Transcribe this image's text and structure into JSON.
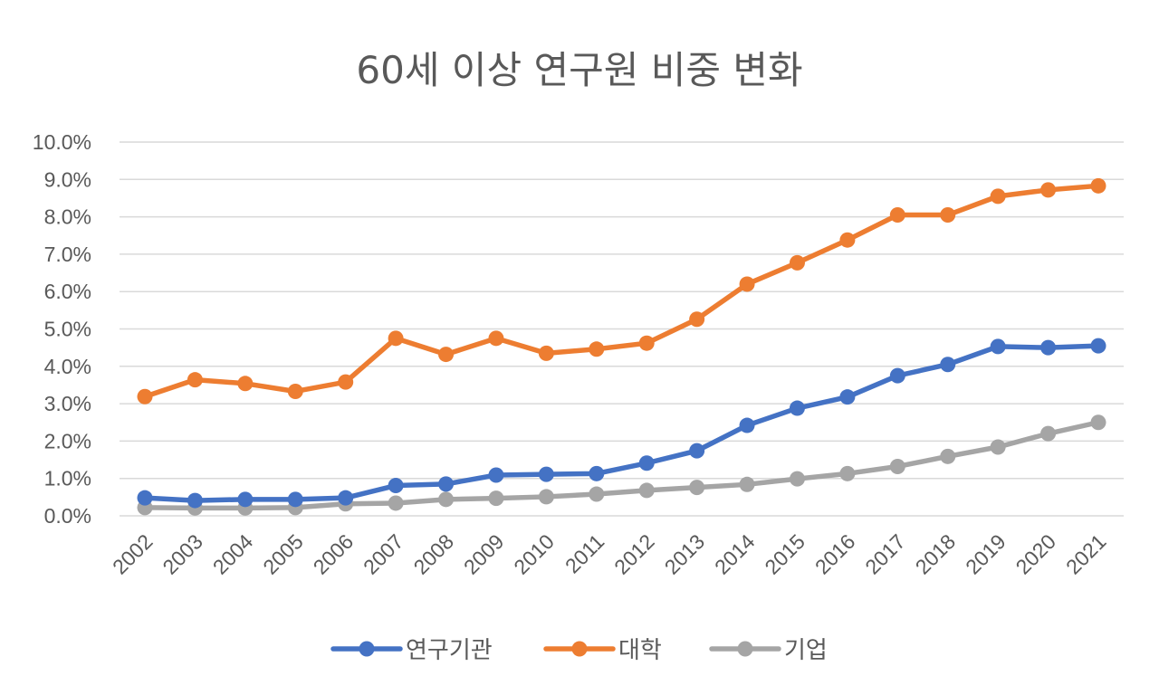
{
  "chart_data": {
    "type": "line",
    "title": "60세 이상 연구원 비중 변화",
    "xlabel": "",
    "ylabel": "",
    "categories": [
      "2002",
      "2003",
      "2004",
      "2005",
      "2006",
      "2007",
      "2008",
      "2009",
      "2010",
      "2011",
      "2012",
      "2013",
      "2014",
      "2015",
      "2016",
      "2017",
      "2018",
      "2019",
      "2020",
      "2021"
    ],
    "ylim": [
      0,
      10
    ],
    "ytick_step": 1,
    "ytick_labels": [
      "0.0%",
      "1.0%",
      "2.0%",
      "3.0%",
      "4.0%",
      "5.0%",
      "6.0%",
      "7.0%",
      "8.0%",
      "9.0%",
      "10.0%"
    ],
    "grid": true,
    "legend_position": "bottom",
    "series": [
      {
        "name": "연구기관",
        "color": "#4472c4",
        "values": [
          0.48,
          0.41,
          0.44,
          0.44,
          0.48,
          0.81,
          0.85,
          1.09,
          1.11,
          1.13,
          1.41,
          1.74,
          2.42,
          2.88,
          3.18,
          3.75,
          4.05,
          4.53,
          4.5,
          4.55
        ]
      },
      {
        "name": "대학",
        "color": "#ed7d31",
        "values": [
          3.19,
          3.64,
          3.54,
          3.33,
          3.58,
          4.75,
          4.32,
          4.75,
          4.35,
          4.46,
          4.62,
          5.26,
          6.2,
          6.77,
          7.38,
          8.05,
          8.05,
          8.55,
          8.72,
          8.83
        ]
      },
      {
        "name": "기업",
        "color": "#a5a5a5",
        "values": [
          0.22,
          0.21,
          0.21,
          0.22,
          0.32,
          0.34,
          0.44,
          0.47,
          0.51,
          0.58,
          0.68,
          0.76,
          0.84,
          0.99,
          1.13,
          1.32,
          1.59,
          1.84,
          2.2,
          2.5
        ]
      }
    ]
  }
}
